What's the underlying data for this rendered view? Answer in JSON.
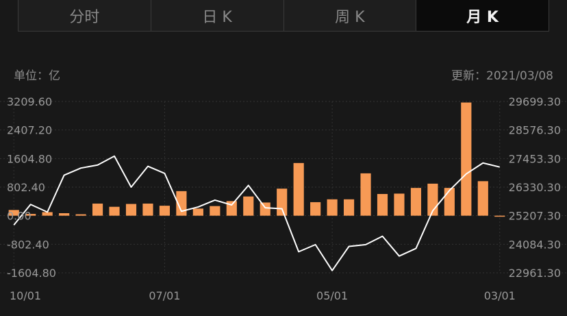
{
  "tabs": [
    {
      "label": "分时",
      "active": false
    },
    {
      "label": "日 K",
      "active": false
    },
    {
      "label": "周 K",
      "active": false
    },
    {
      "label": "月 K",
      "active": true
    }
  ],
  "header": {
    "unit_label": "单位：亿",
    "updated_label": "更新：2021/03/08"
  },
  "colors": {
    "bar": "#F79A55",
    "line": "#FFFFFF",
    "grid": "#333333",
    "background": "#181818"
  },
  "chart_data": {
    "type": "bar+line",
    "title": "",
    "left_axis": {
      "unit": "亿",
      "ticks": [
        3209.6,
        2407.2,
        1604.8,
        802.4,
        0.0,
        -802.4,
        -1604.8
      ],
      "tick_labels": [
        "3209.60",
        "2407.20",
        "1604.80",
        "802.40",
        "0.00",
        "-802.40",
        "-1604.80"
      ],
      "ylim": [
        -1604.8,
        3209.6
      ]
    },
    "right_axis": {
      "ticks": [
        29699.3,
        28576.3,
        27453.3,
        26330.3,
        25207.3,
        24084.3,
        22961.3
      ],
      "tick_labels": [
        "29699.30",
        "28576.30",
        "27453.30",
        "26330.30",
        "25207.30",
        "24084.30",
        "22961.30"
      ],
      "ylim": [
        22961.3,
        29699.3
      ]
    },
    "x_labels": [
      {
        "index": 0,
        "label": "10/01"
      },
      {
        "index": 9,
        "label": "07/01"
      },
      {
        "index": 19,
        "label": "05/01"
      },
      {
        "index": 29,
        "label": "03/01"
      }
    ],
    "series": [
      {
        "name": "amount",
        "type": "bar",
        "axis": "left",
        "values": [
          160,
          50,
          100,
          70,
          40,
          340,
          250,
          330,
          340,
          280,
          690,
          200,
          270,
          410,
          540,
          370,
          760,
          1480,
          380,
          460,
          460,
          1190,
          610,
          620,
          780,
          900,
          780,
          3180,
          970,
          -20
        ]
      },
      {
        "name": "index",
        "type": "line",
        "axis": "right",
        "values": [
          24840,
          25650,
          25350,
          26800,
          27080,
          27200,
          27550,
          26330,
          27150,
          26870,
          25380,
          25550,
          25820,
          25630,
          26400,
          25520,
          25480,
          23790,
          24070,
          23050,
          24000,
          24070,
          24400,
          23620,
          23920,
          25400,
          26200,
          26850,
          27280,
          27120
        ]
      }
    ],
    "grid": true
  }
}
